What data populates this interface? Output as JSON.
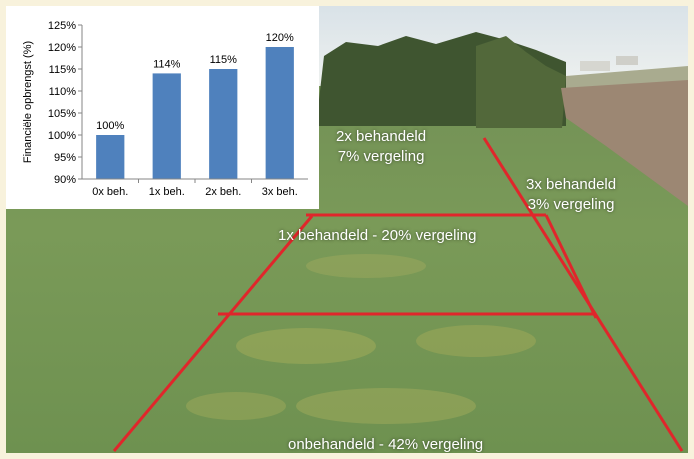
{
  "photo": {
    "plots": [
      {
        "line1": "2x behandeld",
        "line2": "7% vergeling"
      },
      {
        "line1": "3x behandeld",
        "line2": "3% vergeling"
      },
      {
        "line1": "1x behandeld - 20% vergeling"
      },
      {
        "line1": "onbehandeld - 42% vergeling"
      }
    ]
  },
  "colors": {
    "bar": "#4f81bd",
    "plot_lines": "#e0262b",
    "frame": "#f8f2dc"
  },
  "chart_data": {
    "type": "bar",
    "categories": [
      "0x beh.",
      "1x beh.",
      "2x beh.",
      "3x beh."
    ],
    "values": [
      100,
      114,
      115,
      120
    ],
    "value_labels": [
      "100%",
      "114%",
      "115%",
      "120%"
    ],
    "ylabel": "Financiële opbrengst (%)",
    "ylim": [
      90,
      125
    ],
    "yticks": [
      90,
      95,
      100,
      105,
      110,
      115,
      120,
      125
    ],
    "ytick_labels": [
      "90%",
      "95%",
      "100%",
      "105%",
      "110%",
      "115%",
      "120%",
      "125%"
    ],
    "grid": false
  }
}
